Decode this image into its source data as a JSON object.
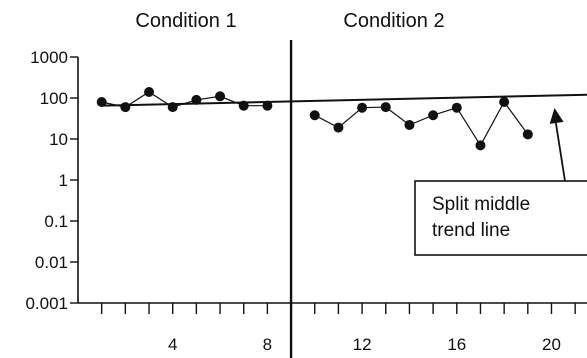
{
  "chart_data": {
    "type": "line",
    "title": "",
    "xlabel": "",
    "ylabel": "",
    "xlim": [
      0,
      21.5
    ],
    "ylim": [
      0.001,
      1000
    ],
    "y_scale": "log",
    "x_ticks": [
      4,
      8,
      12,
      16,
      20
    ],
    "y_ticks": [
      "1000",
      "100",
      "10",
      "1",
      "0.1",
      "0.01",
      "0.001"
    ],
    "conditions": [
      {
        "label": "Condition 1",
        "x": [
          1,
          2,
          3,
          4,
          5,
          6,
          7,
          8
        ],
        "y": [
          80,
          60,
          140,
          60,
          90,
          110,
          65,
          65
        ]
      },
      {
        "label": "Condition 2",
        "x": [
          10,
          11,
          12,
          13,
          14,
          15,
          16,
          17,
          18,
          19
        ],
        "y": [
          38,
          19,
          58,
          60,
          22,
          38,
          58,
          7,
          80,
          13
        ]
      }
    ],
    "phase_change_x": 9,
    "trend_line": {
      "x": [
        1,
        21.5
      ],
      "y": [
        65,
        120
      ]
    },
    "annotation": {
      "text_lines": [
        "Split middle",
        "trend line"
      ],
      "arrow_target": {
        "x": 20,
        "y": 100
      }
    },
    "grid": false,
    "legend": "none",
    "colors": {
      "line": "#111111",
      "marker": "#111111"
    }
  }
}
